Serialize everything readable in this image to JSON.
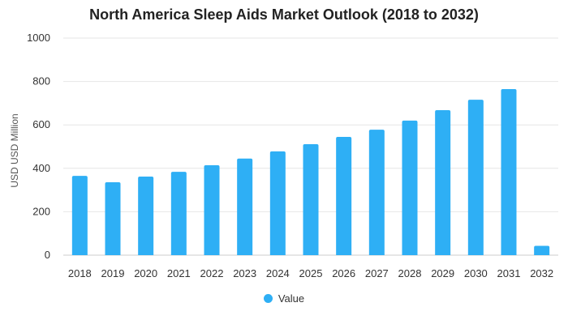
{
  "chart_data": {
    "type": "bar",
    "title": "North America Sleep Aids Market Outlook (2018 to 2032)",
    "xlabel": "",
    "ylabel": "USD USD Million",
    "categories": [
      "2018",
      "2019",
      "2020",
      "2021",
      "2022",
      "2023",
      "2024",
      "2025",
      "2026",
      "2027",
      "2028",
      "2029",
      "2030",
      "2031",
      "2032"
    ],
    "series": [
      {
        "name": "Value",
        "values": [
          365,
          336,
          362,
          384,
          414,
          445,
          478,
          511,
          545,
          578,
          620,
          668,
          716,
          765,
          43
        ]
      }
    ],
    "ylim": [
      0,
      1000
    ],
    "yticks": [
      0,
      200,
      400,
      600,
      800,
      1000
    ],
    "grid": true,
    "legend": "bottom-center",
    "colors": {
      "bar": "#2eaff5",
      "grid": "#e6e6e6",
      "text": "#333333"
    }
  }
}
